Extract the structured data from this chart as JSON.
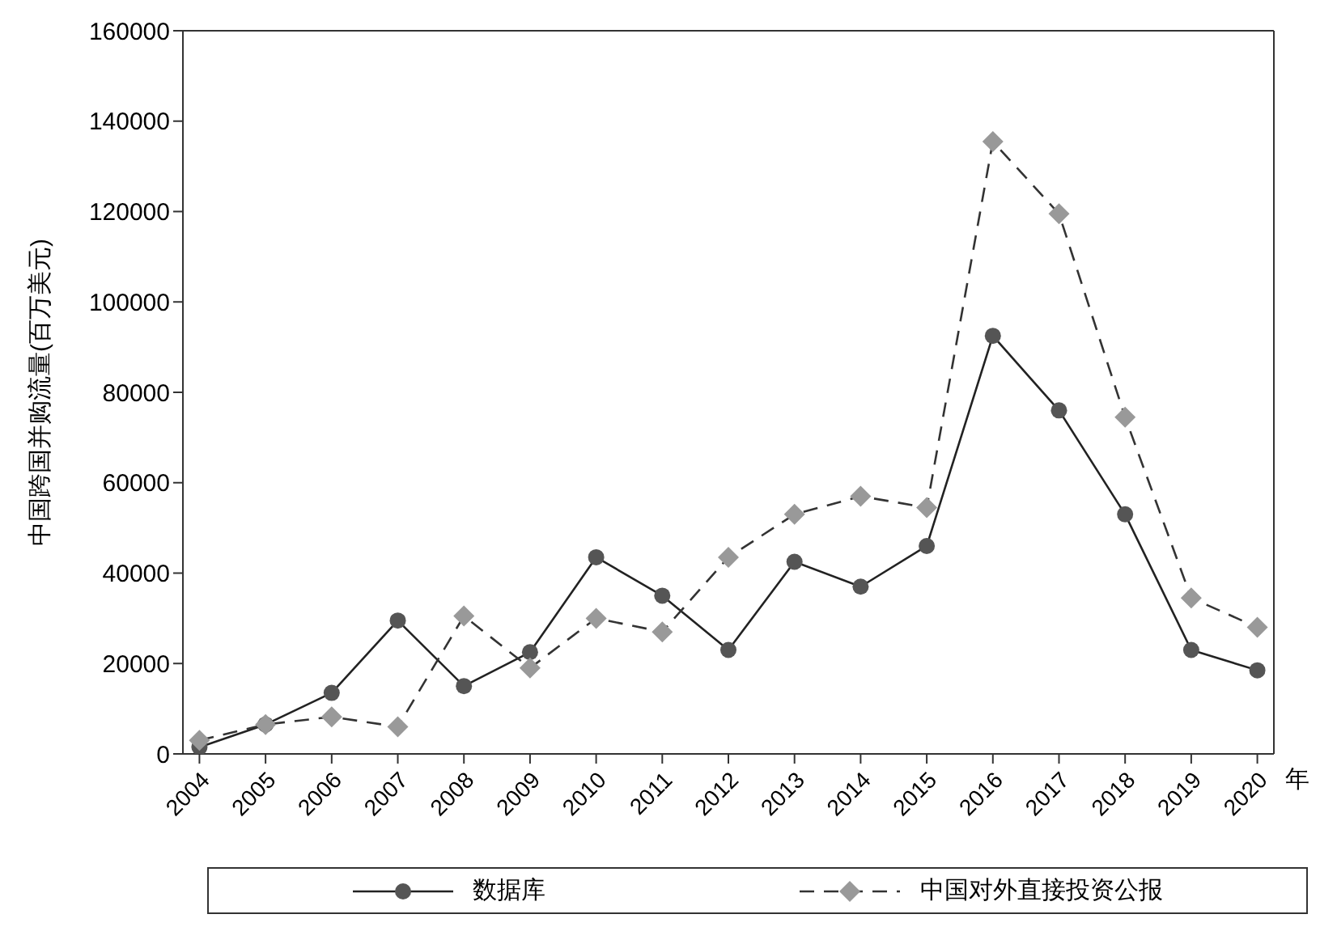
{
  "chart_data": {
    "type": "line",
    "xlabel": "年",
    "ylabel": "中国跨国并购流量(百万美元)",
    "categories": [
      "2004",
      "2005",
      "2006",
      "2007",
      "2008",
      "2009",
      "2010",
      "2011",
      "2012",
      "2013",
      "2014",
      "2015",
      "2016",
      "2017",
      "2018",
      "2019",
      "2020"
    ],
    "series": [
      {
        "name": "数据库",
        "color": "#555555",
        "marker": "circle",
        "line_style": "solid",
        "values": [
          1500,
          6500,
          13500,
          29500,
          15000,
          22500,
          43500,
          35000,
          23000,
          42500,
          37000,
          46000,
          92500,
          76000,
          53000,
          23000,
          18500
        ]
      },
      {
        "name": "中国对外直接投资公报",
        "color": "#999999",
        "marker": "diamond",
        "line_style": "dashed",
        "values": [
          3000,
          6500,
          8200,
          6000,
          30500,
          19000,
          30000,
          27000,
          43500,
          53000,
          57000,
          54500,
          135500,
          119500,
          74500,
          34500,
          28000
        ]
      }
    ],
    "ylim": [
      0,
      160000
    ],
    "yticks": [
      0,
      20000,
      40000,
      60000,
      80000,
      100000,
      120000,
      140000,
      160000
    ],
    "grid": false,
    "legend": "bottom"
  }
}
